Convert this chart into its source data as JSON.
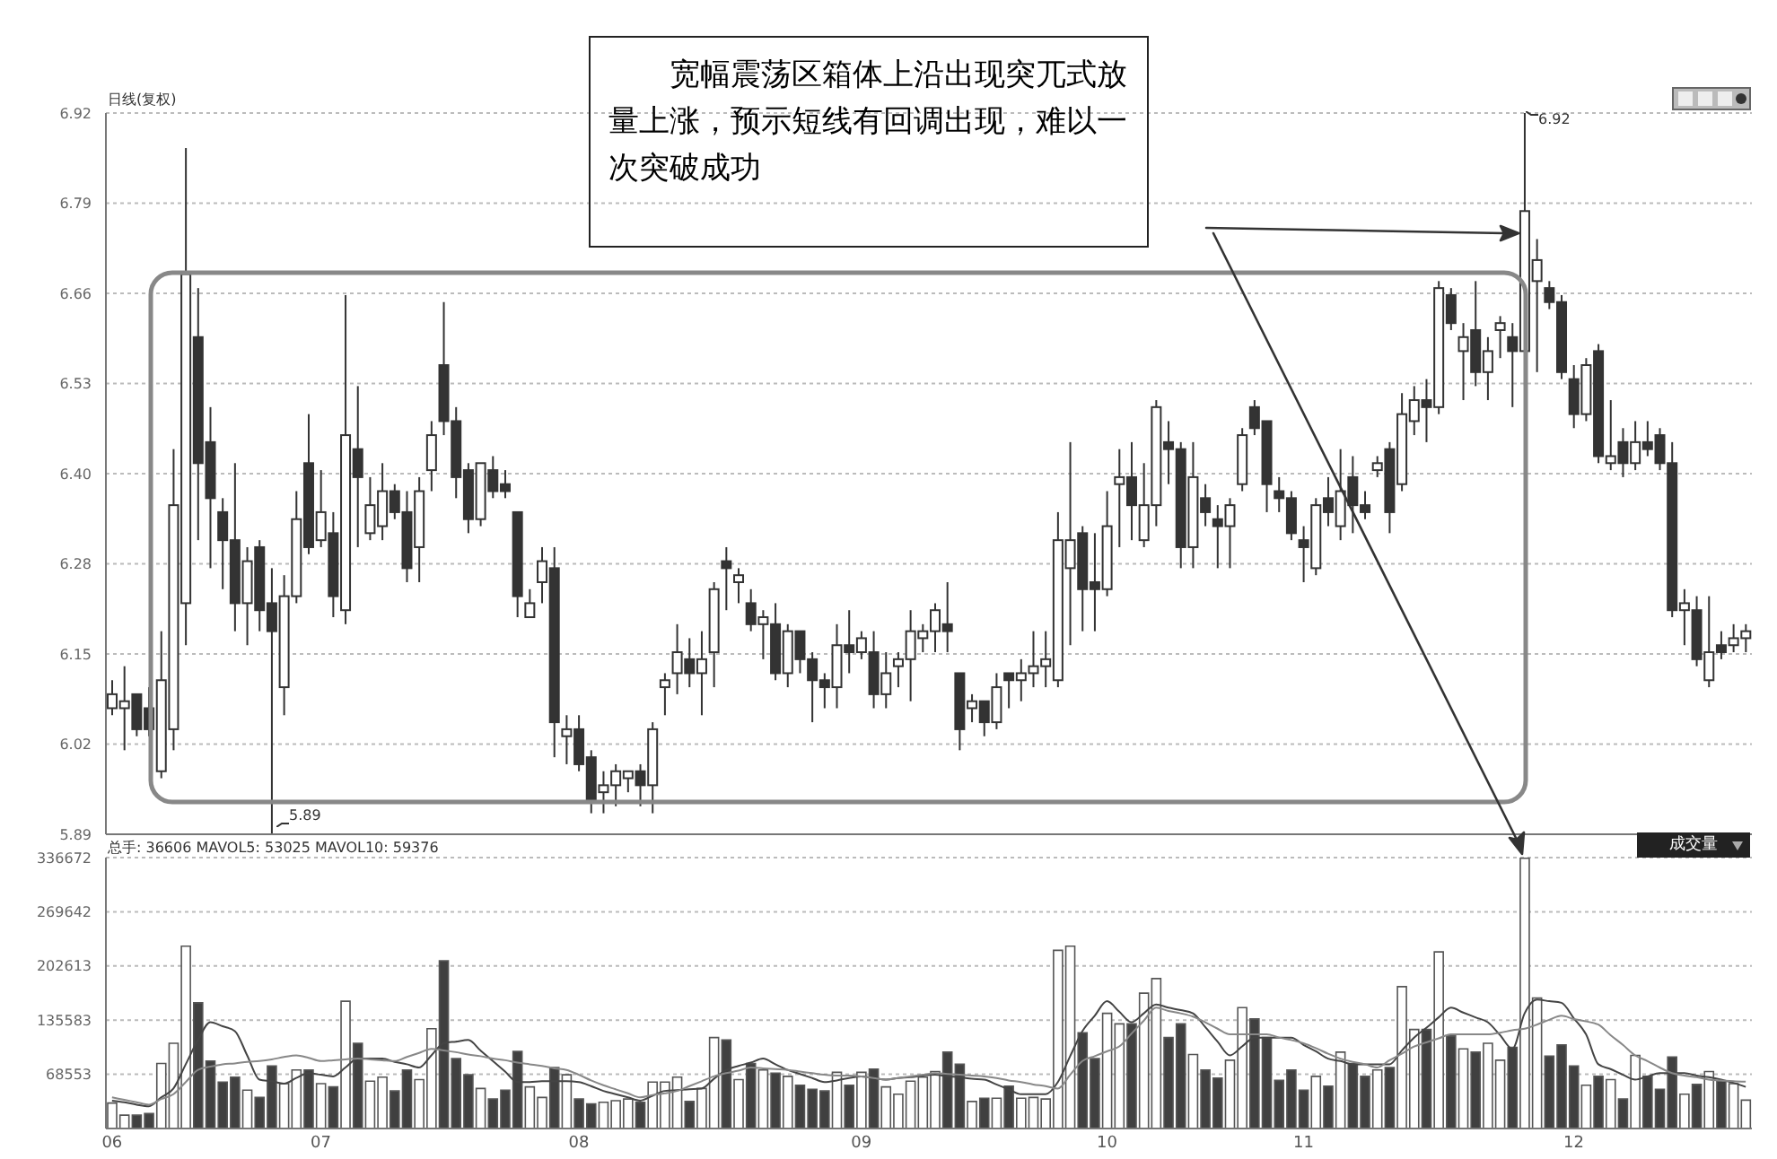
{
  "chart_data": [
    {
      "type": "candlestick",
      "categories": [
        "06",
        null,
        null,
        null,
        null,
        null,
        null,
        null,
        null,
        null,
        null,
        null,
        null,
        null,
        null,
        null,
        null,
        "07",
        null,
        null,
        null,
        null,
        null,
        null,
        null,
        null,
        null,
        null,
        null,
        null,
        null,
        null,
        null,
        null,
        null,
        null,
        null,
        null,
        "08",
        null,
        null,
        null,
        null,
        null,
        null,
        null,
        null,
        null,
        null,
        null,
        null,
        null,
        null,
        null,
        null,
        null,
        null,
        null,
        null,
        null,
        null,
        "09",
        null,
        null,
        null,
        null,
        null,
        null,
        null,
        null,
        null,
        null,
        null,
        null,
        null,
        null,
        null,
        null,
        null,
        null,
        null,
        "10",
        null,
        null,
        null,
        null,
        null,
        null,
        null,
        null,
        null,
        null,
        null,
        null,
        null,
        null,
        null,
        "11",
        null,
        null,
        null,
        null,
        null,
        null,
        null,
        null,
        null,
        null,
        null,
        null,
        null,
        null,
        null,
        null,
        null,
        null,
        null,
        null,
        null,
        "12",
        null,
        null,
        null,
        null,
        null,
        null,
        null,
        null,
        null,
        null,
        null,
        null,
        null,
        null
      ],
      "ohlc": [
        [
          6.07,
          6.11,
          6.06,
          6.09
        ],
        [
          6.07,
          6.13,
          6.01,
          6.08
        ],
        [
          6.09,
          6.09,
          6.03,
          6.04
        ],
        [
          6.07,
          6.1,
          6.03,
          6.04
        ],
        [
          5.98,
          6.18,
          5.97,
          6.11
        ],
        [
          6.04,
          6.44,
          6.01,
          6.36
        ],
        [
          6.22,
          6.87,
          6.16,
          6.69
        ],
        [
          6.6,
          6.67,
          6.31,
          6.42
        ],
        [
          6.45,
          6.5,
          6.27,
          6.37
        ],
        [
          6.35,
          6.37,
          6.24,
          6.31
        ],
        [
          6.31,
          6.42,
          6.18,
          6.22
        ],
        [
          6.22,
          6.3,
          6.16,
          6.28
        ],
        [
          6.3,
          6.31,
          6.18,
          6.21
        ],
        [
          6.22,
          6.27,
          5.89,
          6.18
        ],
        [
          6.1,
          6.26,
          6.06,
          6.23
        ],
        [
          6.23,
          6.38,
          6.22,
          6.34
        ],
        [
          6.42,
          6.49,
          6.29,
          6.3
        ],
        [
          6.31,
          6.41,
          6.3,
          6.35
        ],
        [
          6.32,
          6.35,
          6.2,
          6.23
        ],
        [
          6.21,
          6.66,
          6.19,
          6.46
        ],
        [
          6.44,
          6.53,
          6.3,
          6.4
        ],
        [
          6.32,
          6.4,
          6.31,
          6.36
        ],
        [
          6.33,
          6.42,
          6.31,
          6.38
        ],
        [
          6.38,
          6.39,
          6.34,
          6.35
        ],
        [
          6.35,
          6.38,
          6.25,
          6.27
        ],
        [
          6.3,
          6.4,
          6.25,
          6.38
        ],
        [
          6.41,
          6.48,
          6.38,
          6.46
        ],
        [
          6.56,
          6.65,
          6.46,
          6.48
        ],
        [
          6.48,
          6.5,
          6.37,
          6.4
        ],
        [
          6.41,
          6.42,
          6.32,
          6.34
        ],
        [
          6.34,
          6.42,
          6.33,
          6.42
        ],
        [
          6.41,
          6.43,
          6.37,
          6.38
        ],
        [
          6.39,
          6.41,
          6.37,
          6.38
        ],
        [
          6.35,
          6.35,
          6.2,
          6.23
        ],
        [
          6.2,
          6.24,
          6.2,
          6.22
        ],
        [
          6.25,
          6.3,
          6.22,
          6.28
        ],
        [
          6.27,
          6.3,
          6.0,
          6.05
        ],
        [
          6.03,
          6.06,
          5.99,
          6.04
        ],
        [
          6.04,
          6.06,
          5.98,
          5.99
        ],
        [
          6.0,
          6.01,
          5.92,
          5.94
        ],
        [
          5.95,
          5.98,
          5.92,
          5.96
        ],
        [
          5.96,
          5.99,
          5.93,
          5.98
        ],
        [
          5.97,
          5.98,
          5.95,
          5.98
        ],
        [
          5.98,
          5.99,
          5.93,
          5.96
        ],
        [
          5.96,
          6.05,
          5.92,
          6.04
        ],
        [
          6.1,
          6.12,
          6.06,
          6.11
        ],
        [
          6.12,
          6.19,
          6.09,
          6.15
        ],
        [
          6.14,
          6.17,
          6.1,
          6.12
        ],
        [
          6.12,
          6.18,
          6.06,
          6.14
        ],
        [
          6.15,
          6.25,
          6.1,
          6.24
        ],
        [
          6.28,
          6.3,
          6.21,
          6.27
        ],
        [
          6.25,
          6.27,
          6.22,
          6.26
        ],
        [
          6.22,
          6.24,
          6.18,
          6.19
        ],
        [
          6.19,
          6.21,
          6.14,
          6.2
        ],
        [
          6.19,
          6.22,
          6.11,
          6.12
        ],
        [
          6.12,
          6.19,
          6.1,
          6.18
        ],
        [
          6.18,
          6.18,
          6.12,
          6.14
        ],
        [
          6.14,
          6.15,
          6.05,
          6.11
        ],
        [
          6.11,
          6.12,
          6.07,
          6.1
        ],
        [
          6.1,
          6.19,
          6.07,
          6.16
        ],
        [
          6.16,
          6.21,
          6.12,
          6.15
        ],
        [
          6.15,
          6.18,
          6.14,
          6.17
        ],
        [
          6.15,
          6.18,
          6.07,
          6.09
        ],
        [
          6.09,
          6.15,
          6.07,
          6.12
        ],
        [
          6.13,
          6.15,
          6.1,
          6.14
        ],
        [
          6.14,
          6.21,
          6.08,
          6.18
        ],
        [
          6.17,
          6.19,
          6.15,
          6.18
        ],
        [
          6.18,
          6.22,
          6.15,
          6.21
        ],
        [
          6.19,
          6.25,
          6.15,
          6.18
        ],
        [
          6.12,
          6.12,
          6.01,
          6.04
        ],
        [
          6.07,
          6.09,
          6.05,
          6.08
        ],
        [
          6.08,
          6.08,
          6.03,
          6.05
        ],
        [
          6.05,
          6.12,
          6.04,
          6.1
        ],
        [
          6.12,
          6.12,
          6.07,
          6.11
        ],
        [
          6.11,
          6.14,
          6.08,
          6.12
        ],
        [
          6.12,
          6.18,
          6.1,
          6.13
        ],
        [
          6.13,
          6.18,
          6.1,
          6.14
        ],
        [
          6.11,
          6.35,
          6.1,
          6.31
        ],
        [
          6.27,
          6.45,
          6.16,
          6.31
        ],
        [
          6.32,
          6.33,
          6.18,
          6.24
        ],
        [
          6.25,
          6.32,
          6.18,
          6.24
        ],
        [
          6.24,
          6.38,
          6.23,
          6.33
        ],
        [
          6.39,
          6.44,
          6.3,
          6.4
        ],
        [
          6.4,
          6.45,
          6.31,
          6.36
        ],
        [
          6.31,
          6.42,
          6.3,
          6.36
        ],
        [
          6.36,
          6.51,
          6.33,
          6.5
        ],
        [
          6.45,
          6.48,
          6.39,
          6.44
        ],
        [
          6.44,
          6.45,
          6.27,
          6.3
        ],
        [
          6.3,
          6.45,
          6.27,
          6.4
        ],
        [
          6.37,
          6.39,
          6.33,
          6.35
        ],
        [
          6.34,
          6.36,
          6.27,
          6.33
        ],
        [
          6.33,
          6.37,
          6.27,
          6.36
        ],
        [
          6.39,
          6.47,
          6.38,
          6.46
        ],
        [
          6.5,
          6.51,
          6.46,
          6.47
        ],
        [
          6.48,
          6.48,
          6.35,
          6.39
        ],
        [
          6.38,
          6.4,
          6.35,
          6.37
        ],
        [
          6.37,
          6.38,
          6.31,
          6.32
        ],
        [
          6.31,
          6.33,
          6.25,
          6.3
        ],
        [
          6.27,
          6.37,
          6.26,
          6.36
        ],
        [
          6.37,
          6.4,
          6.33,
          6.35
        ],
        [
          6.33,
          6.44,
          6.31,
          6.38
        ],
        [
          6.4,
          6.43,
          6.32,
          6.36
        ],
        [
          6.36,
          6.38,
          6.34,
          6.35
        ],
        [
          6.41,
          6.43,
          6.4,
          6.42
        ],
        [
          6.44,
          6.45,
          6.32,
          6.35
        ],
        [
          6.39,
          6.52,
          6.38,
          6.49
        ],
        [
          6.48,
          6.53,
          6.46,
          6.51
        ],
        [
          6.51,
          6.54,
          6.45,
          6.5
        ],
        [
          6.5,
          6.68,
          6.49,
          6.67
        ],
        [
          6.66,
          6.67,
          6.61,
          6.62
        ],
        [
          6.58,
          6.62,
          6.51,
          6.6
        ],
        [
          6.61,
          6.68,
          6.53,
          6.55
        ],
        [
          6.55,
          6.6,
          6.51,
          6.58
        ],
        [
          6.61,
          6.63,
          6.57,
          6.62
        ],
        [
          6.6,
          6.62,
          6.5,
          6.58
        ],
        [
          6.58,
          6.92,
          6.53,
          6.78
        ],
        [
          6.68,
          6.74,
          6.55,
          6.71
        ],
        [
          6.67,
          6.68,
          6.64,
          6.65
        ],
        [
          6.65,
          6.66,
          6.54,
          6.55
        ],
        [
          6.54,
          6.56,
          6.47,
          6.49
        ],
        [
          6.49,
          6.57,
          6.48,
          6.56
        ],
        [
          6.58,
          6.59,
          6.42,
          6.43
        ],
        [
          6.42,
          6.51,
          6.41,
          6.43
        ],
        [
          6.45,
          6.47,
          6.4,
          6.42
        ],
        [
          6.42,
          6.48,
          6.41,
          6.45
        ],
        [
          6.45,
          6.48,
          6.43,
          6.44
        ],
        [
          6.46,
          6.47,
          6.41,
          6.42
        ],
        [
          6.42,
          6.45,
          6.2,
          6.21
        ],
        [
          6.21,
          6.24,
          6.16,
          6.22
        ],
        [
          6.21,
          6.23,
          6.13,
          6.14
        ],
        [
          6.11,
          6.23,
          6.1,
          6.15
        ],
        [
          6.16,
          6.18,
          6.14,
          6.15
        ],
        [
          6.16,
          6.19,
          6.15,
          6.17
        ],
        [
          6.17,
          6.19,
          6.15,
          6.18
        ]
      ],
      "color": "#333333",
      "ylim": [
        5.89,
        6.92
      ],
      "yticks": [
        {
          "value": 5.89,
          "label": "5.89"
        },
        {
          "value": 6.01875,
          "label": "6.02"
        },
        {
          "value": 6.1475,
          "label": "6.15"
        },
        {
          "value": 6.27625,
          "label": "6.28"
        },
        {
          "value": 6.405,
          "label": "6.40"
        },
        {
          "value": 6.53375,
          "label": "6.53"
        },
        {
          "value": 6.6625,
          "label": "6.66"
        },
        {
          "value": 6.79125,
          "label": "6.79"
        },
        {
          "value": 6.92,
          "label": "6.92"
        }
      ],
      "grid": "y",
      "tick_labels": "y",
      "annotations": [
        "宽幅震荡区箱体上沿出现突兀式放量上涨，预示短线有回调出现，难以一次突破成功",
        "日线(复权)",
        "6.92",
        "5.89"
      ]
    },
    {
      "type": "bar",
      "categories": [
        "06",
        null,
        null,
        null,
        null,
        null,
        null,
        null,
        null,
        null,
        null,
        null,
        null,
        null,
        null,
        null,
        null,
        "07",
        null,
        null,
        null,
        null,
        null,
        null,
        null,
        null,
        null,
        null,
        null,
        null,
        null,
        null,
        null,
        null,
        null,
        null,
        null,
        null,
        "08",
        null,
        null,
        null,
        null,
        null,
        null,
        null,
        null,
        null,
        null,
        null,
        null,
        null,
        null,
        null,
        null,
        null,
        null,
        null,
        null,
        null,
        null,
        "09",
        null,
        null,
        null,
        null,
        null,
        null,
        null,
        null,
        null,
        null,
        null,
        null,
        null,
        null,
        null,
        null,
        null,
        null,
        null,
        "10",
        null,
        null,
        null,
        null,
        null,
        null,
        null,
        null,
        null,
        null,
        null,
        null,
        null,
        null,
        null,
        "11",
        null,
        null,
        null,
        null,
        null,
        null,
        null,
        null,
        null,
        null,
        null,
        null,
        null,
        null,
        null,
        null,
        null,
        null,
        null,
        null,
        null,
        "12",
        null,
        null,
        null,
        null,
        null,
        null,
        null,
        null,
        null,
        null,
        null,
        null,
        null,
        null
      ],
      "stacked": true,
      "series": [
        {
          "type": "bar",
          "color": "#ffffff",
          "values": [
            33000,
            18000,
            null,
            null,
            82000,
            107000,
            227000,
            null,
            null,
            null,
            null,
            49000,
            null,
            null,
            57000,
            74000,
            null,
            57000,
            null,
            159000,
            null,
            60000,
            65000,
            null,
            null,
            62000,
            125000,
            null,
            null,
            null,
            51000,
            null,
            null,
            null,
            53000,
            40000,
            null,
            68000,
            null,
            null,
            34000,
            36000,
            38000,
            null,
            59000,
            59000,
            65000,
            null,
            51000,
            114000,
            null,
            62000,
            null,
            74000,
            null,
            66000,
            null,
            null,
            null,
            71000,
            null,
            71000,
            null,
            53000,
            44000,
            60000,
            65000,
            72000,
            null,
            null,
            35000,
            null,
            39000,
            null,
            39000,
            40000,
            38000,
            222000,
            227000,
            null,
            null,
            144000,
            131000,
            null,
            169000,
            187000,
            null,
            null,
            93000,
            null,
            null,
            86000,
            151000,
            null,
            null,
            null,
            null,
            null,
            66000,
            null,
            96000,
            null,
            null,
            74000,
            null,
            177000,
            124000,
            null,
            220000,
            null,
            100000,
            null,
            107000,
            86000,
            null,
            336000,
            163000,
            null,
            null,
            null,
            55000,
            null,
            62000,
            null,
            92000,
            null,
            null,
            null,
            44000,
            null,
            72000,
            null,
            57000,
            36606
          ]
        },
        {
          "type": "bar",
          "color": "#404040",
          "values": [
            null,
            null,
            18000,
            20000,
            null,
            null,
            null,
            157000,
            85000,
            59000,
            65000,
            null,
            40000,
            79000,
            null,
            null,
            74000,
            null,
            53000,
            null,
            107000,
            null,
            null,
            48000,
            74000,
            null,
            null,
            209000,
            88000,
            68000,
            null,
            38000,
            49000,
            97000,
            null,
            null,
            77000,
            null,
            38000,
            32000,
            null,
            null,
            null,
            34000,
            null,
            null,
            null,
            35000,
            null,
            null,
            111000,
            null,
            82000,
            null,
            70000,
            null,
            55000,
            50000,
            48000,
            null,
            55000,
            null,
            75000,
            null,
            null,
            null,
            null,
            null,
            96000,
            81000,
            null,
            39000,
            null,
            54000,
            null,
            null,
            null,
            null,
            null,
            120000,
            88000,
            null,
            null,
            131000,
            null,
            null,
            114000,
            131000,
            null,
            74000,
            64000,
            null,
            null,
            137000,
            114000,
            61000,
            74000,
            49000,
            null,
            54000,
            null,
            82000,
            66000,
            null,
            77000,
            null,
            null,
            124000,
            null,
            116000,
            null,
            96000,
            null,
            null,
            102000,
            null,
            null,
            91000,
            105000,
            79000,
            null,
            66000,
            null,
            38000,
            null,
            66000,
            50000,
            90000,
            null,
            56000,
            null,
            60000,
            null,
            null
          ]
        },
        {
          "type": "line",
          "color": "#444444",
          "values": [
            36000,
            34000,
            31000,
            29000,
            40000,
            51000,
            81000,
            111000,
            133000,
            128000,
            122000,
            92000,
            62000,
            60000,
            57000,
            64000,
            70000,
            68000,
            66000,
            77000,
            88000,
            88000,
            88000,
            84000,
            81000,
            77000,
            92000,
            107000,
            109000,
            111000,
            98000,
            85000,
            72000,
            59000,
            59000,
            60000,
            60000,
            60000,
            59000,
            54000,
            48000,
            44000,
            40000,
            36000,
            42000,
            48000,
            49000,
            50000,
            51000,
            63000,
            74000,
            79000,
            83000,
            88000,
            81000,
            74000,
            69000,
            64000,
            59000,
            61000,
            64000,
            66000,
            64000,
            62000,
            64000,
            65000,
            67000,
            68000,
            66000,
            65000,
            63000,
            62000,
            56000,
            50000,
            44000,
            44000,
            44000,
            59000,
            91000,
            122000,
            141000,
            159000,
            146000,
            133000,
            144000,
            155000,
            151000,
            148000,
            144000,
            127000,
            109000,
            92000,
            103000,
            114000,
            114000,
            114000,
            114000,
            105000,
            97000,
            88000,
            85000,
            81000,
            81000,
            81000,
            81000,
            98000,
            114000,
            126000,
            139000,
            151000,
            145000,
            139000,
            133000,
            117000,
            100000,
            144000,
            161000,
            159000,
            157000,
            138000,
            118000,
            81000,
            75000,
            68000,
            62000,
            66000,
            70000,
            70000,
            70000,
            67000,
            65000,
            62000,
            58000,
            53025
          ]
        },
        {
          "type": "line",
          "color": "#888888",
          "values": [
            40000,
            37000,
            34000,
            31000,
            38000,
            44000,
            59000,
            74000,
            78000,
            81000,
            82000,
            84000,
            85000,
            87000,
            90000,
            92000,
            89000,
            85000,
            86000,
            87000,
            88000,
            87000,
            86000,
            85000,
            90000,
            95000,
            100000,
            98000,
            96000,
            93000,
            91000,
            88000,
            86000,
            83000,
            81000,
            79000,
            76000,
            74000,
            68000,
            61000,
            55000,
            50000,
            45000,
            40000,
            43000,
            45000,
            48000,
            54000,
            60000,
            66000,
            70000,
            73000,
            77000,
            76000,
            75000,
            74000,
            72000,
            70000,
            68000,
            67000,
            67000,
            66000,
            64000,
            62000,
            64000,
            66000,
            68000,
            70000,
            69000,
            68000,
            67000,
            66000,
            64000,
            61000,
            59000,
            56000,
            54000,
            51000,
            68000,
            85000,
            91000,
            97000,
            103000,
            119000,
            135000,
            151000,
            147000,
            144000,
            140000,
            133000,
            125000,
            118000,
            118000,
            118000,
            118000,
            114000,
            111000,
            107000,
            101000,
            94000,
            88000,
            84000,
            81000,
            77000,
            86000,
            94000,
            103000,
            108000,
            113000,
            118000,
            118000,
            118000,
            118000,
            120000,
            123000,
            125000,
            130000,
            136000,
            141000,
            137000,
            134000,
            130000,
            117000,
            105000,
            92000,
            85000,
            77000,
            70000,
            67000,
            65000,
            62000,
            61000,
            60000,
            59376
          ]
        }
      ],
      "ylim": [
        1523,
        336672
      ],
      "yticks": [
        68553,
        135583,
        202613,
        269642,
        336672
      ],
      "grid": "y",
      "annotations": [
        "总手: 36606 MAVOL5: 53025 MAVOL10: 59376",
        "成交量"
      ]
    }
  ]
}
